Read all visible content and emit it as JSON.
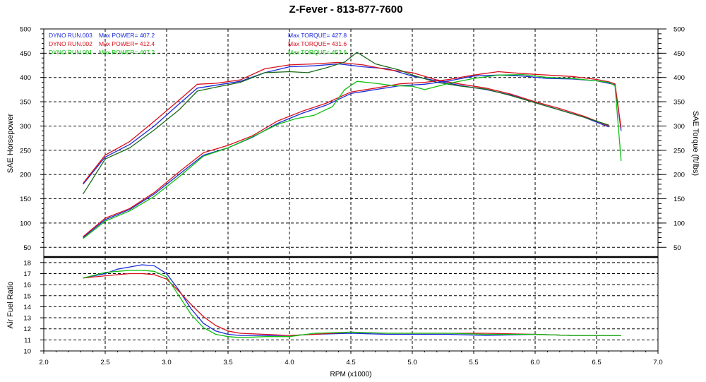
{
  "chart_data": {
    "type": "line",
    "title": "Z-Fever - 813-877-7600",
    "xlabel": "RPM (x1000)",
    "x_ticks": [
      "2.0",
      "2.5",
      "3.0",
      "3.5",
      "4.0",
      "4.5",
      "5.0",
      "5.5",
      "6.0",
      "6.5",
      "7.0"
    ],
    "xlim": [
      2.0,
      7.0
    ],
    "grid": true,
    "colors": {
      "run003": "#1a2ad8",
      "run002": "#d8101c",
      "run001": "#10c010",
      "run001_dark": "#1a6a1a"
    },
    "top_panel": {
      "ylabel_left": "SAE Horsepower",
      "ylabel_right": "SAE Torque (ft/lbs)",
      "ylim": [
        30,
        500
      ],
      "y_ticks_left": [
        "50",
        "100",
        "150",
        "200",
        "250",
        "300",
        "350",
        "400",
        "450",
        "500"
      ],
      "y_ticks_right": [
        "50",
        "100",
        "150",
        "200",
        "250",
        "300",
        "350",
        "400",
        "450",
        "500"
      ],
      "legend": [
        {
          "run": "DYNO RUN.003",
          "power": "Max POWER= 407.2",
          "torque": "Max TORQUE= 427.8",
          "color_key": "run003"
        },
        {
          "run": "DYNO RUN.002",
          "power": "Max POWER= 412.4",
          "torque": "Max TORQUE= 431.6",
          "color_key": "run002"
        },
        {
          "run": "DYNO RUN.001",
          "power": "Max POWER= 407.2",
          "torque": "Max TORQUE= 452.6",
          "color_key": "run001"
        }
      ],
      "series": [
        {
          "name": "DYNO RUN.003 Torque",
          "color_key": "run003",
          "x": [
            2.32,
            2.5,
            2.7,
            2.9,
            3.1,
            3.25,
            3.4,
            3.6,
            3.8,
            4.0,
            4.2,
            4.4,
            4.6,
            4.8,
            5.0,
            5.2,
            5.4,
            5.6,
            5.8,
            6.0,
            6.2,
            6.4,
            6.6
          ],
          "y": [
            180,
            236,
            262,
            300,
            345,
            378,
            384,
            392,
            410,
            422,
            424,
            428,
            422,
            418,
            403,
            393,
            383,
            375,
            364,
            348,
            333,
            318,
            298
          ]
        },
        {
          "name": "DYNO RUN.002 Torque",
          "color_key": "run002",
          "x": [
            2.32,
            2.5,
            2.7,
            2.9,
            3.1,
            3.25,
            3.4,
            3.6,
            3.8,
            4.0,
            4.2,
            4.4,
            4.6,
            4.8,
            5.0,
            5.2,
            5.4,
            5.6,
            5.8,
            6.0,
            6.2,
            6.4,
            6.6
          ],
          "y": [
            182,
            240,
            268,
            310,
            353,
            386,
            388,
            395,
            418,
            426,
            428,
            431,
            426,
            416,
            410,
            395,
            386,
            378,
            366,
            350,
            336,
            320,
            300
          ]
        },
        {
          "name": "DYNO RUN.001 Torque",
          "color_key": "run001_dark",
          "x": [
            2.32,
            2.5,
            2.7,
            2.9,
            3.1,
            3.25,
            3.4,
            3.6,
            3.8,
            4.0,
            4.15,
            4.3,
            4.45,
            4.55,
            4.7,
            4.9,
            5.0,
            5.2,
            5.4,
            5.6,
            5.8,
            6.0,
            6.2,
            6.4,
            6.6
          ],
          "y": [
            160,
            232,
            255,
            292,
            333,
            372,
            380,
            390,
            410,
            412,
            410,
            420,
            432,
            452,
            428,
            415,
            405,
            390,
            382,
            376,
            363,
            348,
            333,
            318,
            302
          ]
        },
        {
          "name": "DYNO RUN.003 Power",
          "color_key": "run003",
          "x": [
            2.32,
            2.5,
            2.7,
            2.9,
            3.1,
            3.3,
            3.5,
            3.7,
            3.9,
            4.1,
            4.3,
            4.5,
            4.7,
            4.9,
            5.1,
            5.3,
            5.5,
            5.7,
            5.9,
            6.1,
            6.3,
            6.5,
            6.6,
            6.65,
            6.7
          ],
          "y": [
            70,
            107,
            128,
            160,
            200,
            240,
            255,
            277,
            305,
            326,
            343,
            367,
            375,
            383,
            386,
            393,
            403,
            405,
            403,
            398,
            397,
            393,
            388,
            385,
            290
          ]
        },
        {
          "name": "DYNO RUN.002 Power",
          "color_key": "run002",
          "x": [
            2.32,
            2.5,
            2.7,
            2.9,
            3.1,
            3.3,
            3.5,
            3.7,
            3.9,
            4.1,
            4.3,
            4.5,
            4.7,
            4.9,
            5.1,
            5.3,
            5.5,
            5.7,
            5.9,
            6.1,
            6.3,
            6.5,
            6.6,
            6.65,
            6.7
          ],
          "y": [
            72,
            110,
            130,
            163,
            205,
            245,
            260,
            280,
            310,
            330,
            347,
            370,
            378,
            387,
            390,
            396,
            405,
            412,
            408,
            405,
            402,
            396,
            391,
            387,
            295
          ]
        },
        {
          "name": "DYNO RUN.001 Power",
          "color_key": "run001",
          "x": [
            2.32,
            2.5,
            2.7,
            2.9,
            3.1,
            3.3,
            3.5,
            3.7,
            3.9,
            4.05,
            4.2,
            4.35,
            4.45,
            4.55,
            4.7,
            4.85,
            5.0,
            5.1,
            5.3,
            5.5,
            5.7,
            5.9,
            6.1,
            6.3,
            6.5,
            6.6,
            6.65,
            6.7
          ],
          "y": [
            68,
            104,
            125,
            155,
            195,
            238,
            255,
            278,
            303,
            315,
            322,
            340,
            375,
            392,
            388,
            383,
            382,
            375,
            388,
            398,
            405,
            406,
            400,
            398,
            393,
            390,
            383,
            228
          ]
        }
      ]
    },
    "bottom_panel": {
      "ylabel": "Air Fuel Ratio",
      "ylim": [
        10,
        18.5
      ],
      "y_ticks": [
        "10",
        "11",
        "12",
        "13",
        "14",
        "15",
        "16",
        "17",
        "18"
      ],
      "series": [
        {
          "name": "DYNO RUN.003 AFR",
          "color_key": "run003",
          "x": [
            2.32,
            2.5,
            2.6,
            2.7,
            2.8,
            2.9,
            3.0,
            3.1,
            3.2,
            3.3,
            3.4,
            3.5,
            3.6,
            3.8,
            4.0,
            4.2,
            4.5,
            4.8,
            5.0,
            5.3,
            5.6,
            6.0,
            6.3,
            6.6,
            6.7
          ],
          "y": [
            16.6,
            17.0,
            17.4,
            17.6,
            17.8,
            17.7,
            17.0,
            15.5,
            13.8,
            12.5,
            11.8,
            11.5,
            11.4,
            11.4,
            11.4,
            11.5,
            11.6,
            11.5,
            11.5,
            11.5,
            11.4,
            11.5,
            11.4,
            11.4,
            11.4
          ]
        },
        {
          "name": "DYNO RUN.002 AFR",
          "color_key": "run002",
          "x": [
            2.32,
            2.5,
            2.6,
            2.7,
            2.8,
            2.9,
            3.0,
            3.1,
            3.2,
            3.3,
            3.4,
            3.5,
            3.6,
            3.8,
            4.0,
            4.2,
            4.5,
            4.8,
            5.0,
            5.3,
            5.6,
            6.0,
            6.3,
            6.6,
            6.7
          ],
          "y": [
            16.6,
            16.8,
            16.9,
            17.0,
            17.0,
            16.9,
            16.5,
            15.4,
            14.2,
            13.1,
            12.3,
            11.8,
            11.6,
            11.5,
            11.4,
            11.5,
            11.7,
            11.6,
            11.6,
            11.6,
            11.6,
            11.5,
            11.4,
            11.4,
            11.4
          ]
        },
        {
          "name": "DYNO RUN.001 AFR",
          "color_key": "run001",
          "x": [
            2.32,
            2.5,
            2.6,
            2.7,
            2.8,
            2.9,
            3.0,
            3.1,
            3.2,
            3.3,
            3.4,
            3.5,
            3.6,
            3.8,
            4.0,
            4.2,
            4.5,
            4.8,
            5.0,
            5.3,
            5.6,
            6.0,
            6.3,
            6.6,
            6.7
          ],
          "y": [
            16.6,
            17.1,
            17.2,
            17.3,
            17.3,
            17.2,
            16.7,
            15.0,
            13.3,
            12.1,
            11.5,
            11.3,
            11.2,
            11.3,
            11.3,
            11.6,
            11.7,
            11.6,
            11.6,
            11.6,
            11.5,
            11.5,
            11.4,
            11.4,
            11.4
          ]
        }
      ]
    }
  }
}
